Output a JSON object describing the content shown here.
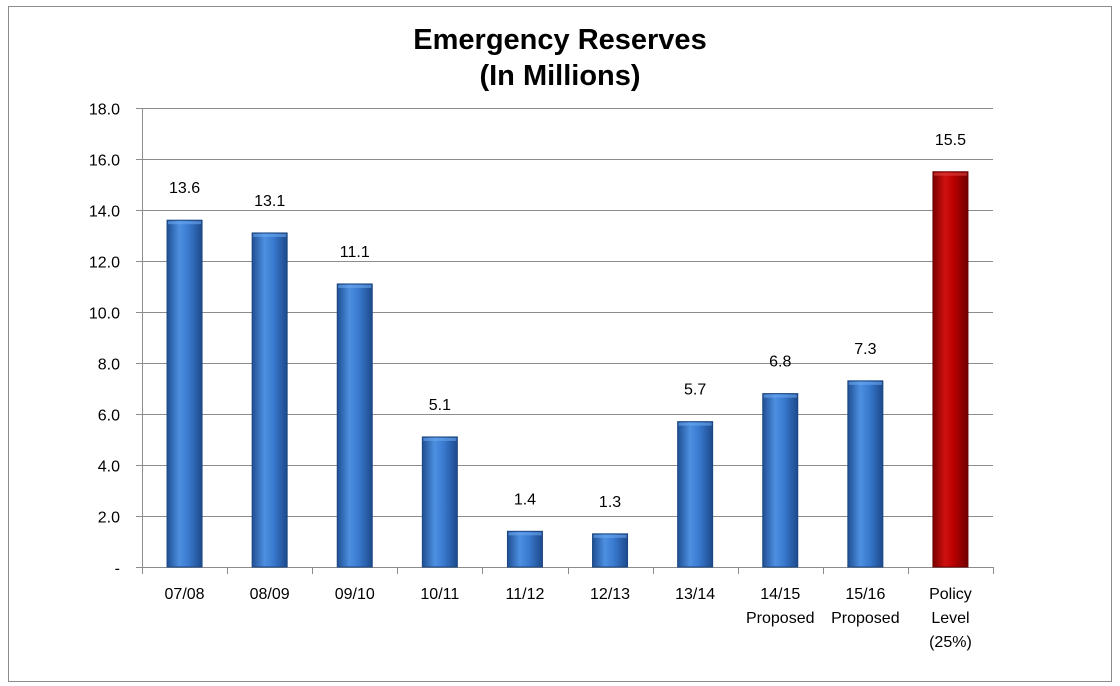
{
  "chart_data": {
    "type": "bar",
    "title_lines": [
      "Emergency Reserves",
      "(In Millions)"
    ],
    "xlabel": "",
    "ylabel": "",
    "ylim": [
      0,
      18
    ],
    "y_ticks": [
      {
        "value": 0,
        "label": "-"
      },
      {
        "value": 2,
        "label": "2.0"
      },
      {
        "value": 4,
        "label": "4.0"
      },
      {
        "value": 6,
        "label": "6.0"
      },
      {
        "value": 8,
        "label": "8.0"
      },
      {
        "value": 10,
        "label": "10.0"
      },
      {
        "value": 12,
        "label": "12.0"
      },
      {
        "value": 14,
        "label": "14.0"
      },
      {
        "value": 16,
        "label": "16.0"
      },
      {
        "value": 18,
        "label": "18.0"
      }
    ],
    "grid": true,
    "legend": "none",
    "categories": [
      [
        "07/08"
      ],
      [
        "08/09"
      ],
      [
        "09/10"
      ],
      [
        "10/11"
      ],
      [
        "11/12"
      ],
      [
        "12/13"
      ],
      [
        "13/14"
      ],
      [
        "14/15",
        "Proposed"
      ],
      [
        "15/16",
        "Proposed"
      ],
      [
        "Policy",
        "Level",
        "(25%)"
      ]
    ],
    "values": [
      13.6,
      13.1,
      11.1,
      5.1,
      1.4,
      1.3,
      5.7,
      6.8,
      7.3,
      15.5
    ],
    "data_labels": [
      "13.6",
      "13.1",
      "11.1",
      "5.1",
      "1.4",
      "1.3",
      "5.7",
      "6.8",
      "7.3",
      "15.5"
    ],
    "bar_colors": [
      "#2e6fc4",
      "#2e6fc4",
      "#2e6fc4",
      "#2e6fc4",
      "#2e6fc4",
      "#2e6fc4",
      "#2e6fc4",
      "#2e6fc4",
      "#2e6fc4",
      "#b30000"
    ],
    "gridline_color": "#8c8c8c"
  }
}
